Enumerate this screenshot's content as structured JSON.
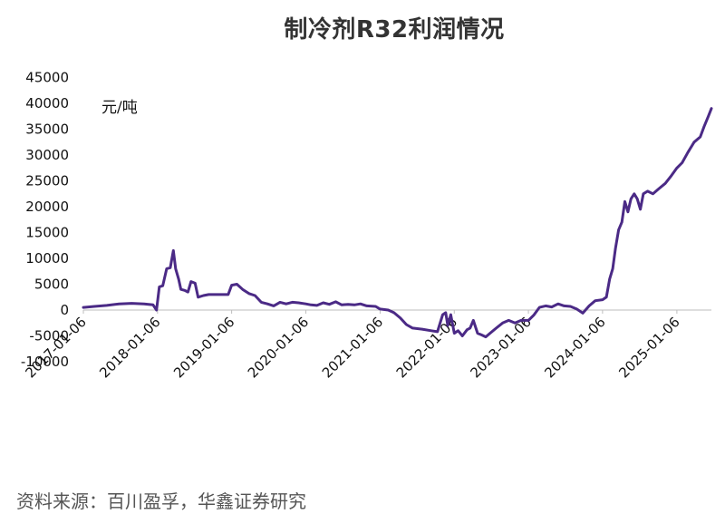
{
  "chart_data": {
    "type": "line",
    "title": "制冷剂R32利润情况",
    "unit": "元/吨",
    "source": "资料来源：百川盈孚，华鑫证券研究",
    "xlabel": "",
    "ylabel": "",
    "ylim": [
      -10000,
      45000
    ],
    "yticks": [
      -10000,
      -5000,
      0,
      5000,
      10000,
      15000,
      20000,
      25000,
      30000,
      35000,
      40000,
      45000
    ],
    "xtick_labels": [
      "2017-01-06",
      "2018-01-06",
      "2019-01-06",
      "2020-01-06",
      "2021-01-06",
      "2022-01-06",
      "2023-01-06",
      "2024-01-06",
      "2025-01-06"
    ],
    "grid": false,
    "line_color": "#4b2a86",
    "series": [
      {
        "points": [
          [
            "2017-01-06",
            500
          ],
          [
            "2017-03-01",
            700
          ],
          [
            "2017-05-01",
            900
          ],
          [
            "2017-07-01",
            1200
          ],
          [
            "2017-09-01",
            1300
          ],
          [
            "2017-11-01",
            1200
          ],
          [
            "2017-12-15",
            1000
          ],
          [
            "2018-01-01",
            0
          ],
          [
            "2018-01-15",
            4500
          ],
          [
            "2018-02-01",
            4700
          ],
          [
            "2018-02-20",
            8000
          ],
          [
            "2018-03-10",
            8200
          ],
          [
            "2018-03-25",
            11500
          ],
          [
            "2018-04-05",
            8000
          ],
          [
            "2018-04-20",
            6000
          ],
          [
            "2018-05-01",
            4000
          ],
          [
            "2018-05-20",
            3800
          ],
          [
            "2018-06-05",
            3500
          ],
          [
            "2018-06-20",
            5500
          ],
          [
            "2018-07-10",
            5200
          ],
          [
            "2018-07-25",
            2500
          ],
          [
            "2018-08-20",
            2800
          ],
          [
            "2018-09-15",
            3000
          ],
          [
            "2018-10-15",
            3000
          ],
          [
            "2018-11-20",
            3000
          ],
          [
            "2018-12-20",
            3000
          ],
          [
            "2019-01-06",
            4800
          ],
          [
            "2019-02-01",
            5000
          ],
          [
            "2019-03-01",
            4000
          ],
          [
            "2019-04-01",
            3200
          ],
          [
            "2019-05-01",
            2800
          ],
          [
            "2019-06-01",
            1500
          ],
          [
            "2019-07-01",
            1200
          ],
          [
            "2019-08-01",
            800
          ],
          [
            "2019-09-01",
            1500
          ],
          [
            "2019-10-01",
            1200
          ],
          [
            "2019-11-01",
            1500
          ],
          [
            "2019-12-01",
            1400
          ],
          [
            "2020-01-06",
            1200
          ],
          [
            "2020-02-01",
            1000
          ],
          [
            "2020-03-01",
            900
          ],
          [
            "2020-04-01",
            1400
          ],
          [
            "2020-05-01",
            1100
          ],
          [
            "2020-06-01",
            1600
          ],
          [
            "2020-07-01",
            1000
          ],
          [
            "2020-08-01",
            1100
          ],
          [
            "2020-09-01",
            1000
          ],
          [
            "2020-10-01",
            1200
          ],
          [
            "2020-11-01",
            800
          ],
          [
            "2020-12-15",
            700
          ],
          [
            "2021-01-06",
            200
          ],
          [
            "2021-02-15",
            0
          ],
          [
            "2021-03-15",
            -500
          ],
          [
            "2021-04-15",
            -1500
          ],
          [
            "2021-05-15",
            -2800
          ],
          [
            "2021-06-15",
            -3500
          ],
          [
            "2021-08-01",
            -3700
          ],
          [
            "2021-09-15",
            -4000
          ],
          [
            "2021-10-15",
            -4200
          ],
          [
            "2021-11-10",
            -900
          ],
          [
            "2021-11-25",
            -500
          ],
          [
            "2021-12-05",
            -3000
          ],
          [
            "2021-12-20",
            -900
          ],
          [
            "2022-01-06",
            -4500
          ],
          [
            "2022-01-25",
            -4000
          ],
          [
            "2022-02-15",
            -5000
          ],
          [
            "2022-03-10",
            -3800
          ],
          [
            "2022-03-25",
            -3500
          ],
          [
            "2022-04-10",
            -2000
          ],
          [
            "2022-05-01",
            -4500
          ],
          [
            "2022-05-20",
            -4800
          ],
          [
            "2022-06-10",
            -5200
          ],
          [
            "2022-07-01",
            -4500
          ],
          [
            "2022-08-01",
            -3500
          ],
          [
            "2022-09-01",
            -2500
          ],
          [
            "2022-10-01",
            -2000
          ],
          [
            "2022-11-01",
            -2500
          ],
          [
            "2022-12-01",
            -2000
          ],
          [
            "2023-01-06",
            -2000
          ],
          [
            "2023-02-01",
            -1000
          ],
          [
            "2023-03-01",
            500
          ],
          [
            "2023-04-01",
            800
          ],
          [
            "2023-05-01",
            600
          ],
          [
            "2023-06-01",
            1200
          ],
          [
            "2023-07-01",
            800
          ],
          [
            "2023-08-01",
            700
          ],
          [
            "2023-09-01",
            200
          ],
          [
            "2023-10-01",
            -600
          ],
          [
            "2023-11-01",
            800
          ],
          [
            "2023-12-01",
            1800
          ],
          [
            "2024-01-06",
            2000
          ],
          [
            "2024-01-25",
            2500
          ],
          [
            "2024-02-10",
            6000
          ],
          [
            "2024-02-25",
            8000
          ],
          [
            "2024-03-10",
            12000
          ],
          [
            "2024-03-25",
            15500
          ],
          [
            "2024-04-10",
            17000
          ],
          [
            "2024-04-25",
            21000
          ],
          [
            "2024-05-10",
            19000
          ],
          [
            "2024-05-25",
            21500
          ],
          [
            "2024-06-10",
            22500
          ],
          [
            "2024-06-25",
            21500
          ],
          [
            "2024-07-10",
            19500
          ],
          [
            "2024-07-25",
            22500
          ],
          [
            "2024-08-15",
            23000
          ],
          [
            "2024-09-10",
            22500
          ],
          [
            "2024-10-10",
            23500
          ],
          [
            "2024-11-10",
            24500
          ],
          [
            "2024-12-10",
            26000
          ],
          [
            "2025-01-06",
            27500
          ],
          [
            "2025-02-01",
            28500
          ],
          [
            "2025-03-01",
            30500
          ],
          [
            "2025-04-01",
            32500
          ],
          [
            "2025-05-01",
            33500
          ],
          [
            "2025-05-20",
            35500
          ],
          [
            "2025-06-10",
            37500
          ],
          [
            "2025-06-25",
            39000
          ]
        ]
      }
    ]
  }
}
